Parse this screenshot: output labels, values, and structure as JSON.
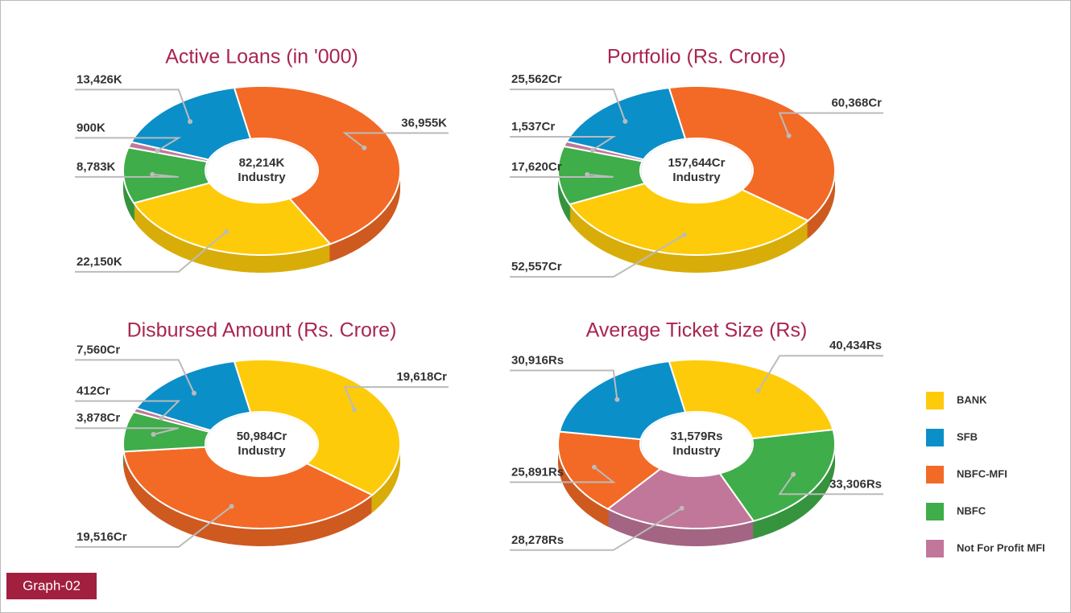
{
  "chart_data": [
    {
      "type": "pie",
      "title": "Active Loans (in '000)",
      "values": [
        22150,
        13426,
        36955,
        8783,
        900
      ],
      "value_labels": [
        "22,150K",
        "13,426K",
        "36,955K",
        "8,783K",
        "900K"
      ],
      "center_label": "82,214K",
      "center_sublabel": "Industry"
    },
    {
      "type": "pie",
      "title": "Portfolio (Rs. Crore)",
      "values": [
        52557,
        25562,
        60368,
        17620,
        1537
      ],
      "value_labels": [
        "52,557Cr",
        "25,562Cr",
        "60,368Cr",
        "17,620Cr",
        "1,537Cr"
      ],
      "center_label": "157,644Cr",
      "center_sublabel": "Industry"
    },
    {
      "type": "pie",
      "title": "Disbursed Amount (Rs. Crore)",
      "values": [
        19618,
        7560,
        19516,
        3878,
        412
      ],
      "value_labels": [
        "19,618Cr",
        "7,560Cr",
        "19,516Cr",
        "3,878Cr",
        "412Cr"
      ],
      "center_label": "50,984Cr",
      "center_sublabel": "Industry"
    },
    {
      "type": "pie",
      "title": "Average Ticket Size (Rs)",
      "values": [
        40434,
        30916,
        25891,
        33306,
        28278
      ],
      "value_labels": [
        "40,434Rs",
        "30,916Rs",
        "25,891Rs",
        "33,306Rs",
        "28,278Rs"
      ],
      "center_label": "31,579Rs",
      "center_sublabel": "Industry"
    }
  ],
  "legend": {
    "categories": [
      "BANK",
      "SFB",
      "NBFC-MFI",
      "NBFC",
      "Not For Profit MFI"
    ],
    "colors": [
      "#fecb0a",
      "#0b8fc9",
      "#f26a26",
      "#3fad49",
      "#c0779a"
    ]
  },
  "badge": "Graph-02"
}
